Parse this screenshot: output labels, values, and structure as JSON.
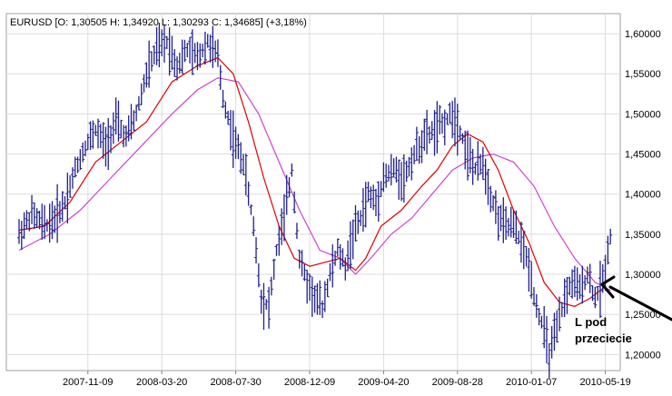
{
  "chart_data": {
    "type": "ohlc",
    "title": "EURUSD [O: 1,30505  H: 1,34920  L: 1,30293  C: 1,34685] (+3,18%)",
    "x_tick_labels": [
      "2007-11-09",
      "2008-03-20",
      "2008-07-30",
      "2008-12-09",
      "2009-04-20",
      "2009-08-28",
      "2010-01-07",
      "2010-05-19"
    ],
    "y_tick_labels": [
      "1,60000",
      "1,55000",
      "1,50000",
      "1,45000",
      "1,40000",
      "1,35000",
      "1,30000",
      "1,25000",
      "1,20000"
    ],
    "y_tick_values": [
      1.6,
      1.55,
      1.5,
      1.45,
      1.4,
      1.35,
      1.3,
      1.25,
      1.2
    ],
    "ylim": [
      1.18,
      1.625
    ],
    "grid": true,
    "price_color": "#20208c",
    "ma_fast_color": "#dd0000",
    "ma_slow_color": "#cc44cc",
    "price_path": [
      [
        0,
        1.35
      ],
      [
        5,
        1.375
      ],
      [
        10,
        1.36
      ],
      [
        14,
        1.37
      ],
      [
        18,
        1.39
      ],
      [
        22,
        1.43
      ],
      [
        26,
        1.46
      ],
      [
        30,
        1.48
      ],
      [
        34,
        1.46
      ],
      [
        38,
        1.49
      ],
      [
        42,
        1.47
      ],
      [
        46,
        1.5
      ],
      [
        50,
        1.55
      ],
      [
        54,
        1.58
      ],
      [
        58,
        1.59
      ],
      [
        62,
        1.56
      ],
      [
        66,
        1.58
      ],
      [
        70,
        1.57
      ],
      [
        74,
        1.59
      ],
      [
        78,
        1.57
      ],
      [
        80,
        1.52
      ],
      [
        84,
        1.47
      ],
      [
        88,
        1.44
      ],
      [
        92,
        1.36
      ],
      [
        95,
        1.27
      ],
      [
        98,
        1.26
      ],
      [
        101,
        1.33
      ],
      [
        104,
        1.37
      ],
      [
        107,
        1.43
      ],
      [
        110,
        1.32
      ],
      [
        113,
        1.29
      ],
      [
        116,
        1.27
      ],
      [
        119,
        1.26
      ],
      [
        122,
        1.3
      ],
      [
        125,
        1.33
      ],
      [
        128,
        1.31
      ],
      [
        131,
        1.35
      ],
      [
        134,
        1.37
      ],
      [
        137,
        1.4
      ],
      [
        140,
        1.39
      ],
      [
        143,
        1.42
      ],
      [
        147,
        1.43
      ],
      [
        151,
        1.42
      ],
      [
        155,
        1.45
      ],
      [
        159,
        1.47
      ],
      [
        163,
        1.48
      ],
      [
        167,
        1.49
      ],
      [
        170,
        1.5
      ],
      [
        173,
        1.48
      ],
      [
        176,
        1.45
      ],
      [
        179,
        1.43
      ],
      [
        182,
        1.44
      ],
      [
        185,
        1.4
      ],
      [
        188,
        1.37
      ],
      [
        191,
        1.36
      ],
      [
        194,
        1.36
      ],
      [
        197,
        1.34
      ],
      [
        200,
        1.31
      ],
      [
        203,
        1.26
      ],
      [
        206,
        1.23
      ],
      [
        208,
        1.2
      ],
      [
        211,
        1.23
      ],
      [
        214,
        1.27
      ],
      [
        217,
        1.29
      ],
      [
        220,
        1.28
      ],
      [
        223,
        1.3
      ],
      [
        226,
        1.27
      ],
      [
        229,
        1.29
      ],
      [
        232,
        1.35
      ]
    ],
    "ma_fast": [
      [
        0,
        1.355
      ],
      [
        10,
        1.36
      ],
      [
        20,
        1.39
      ],
      [
        30,
        1.44
      ],
      [
        40,
        1.465
      ],
      [
        50,
        1.49
      ],
      [
        60,
        1.54
      ],
      [
        70,
        1.56
      ],
      [
        78,
        1.57
      ],
      [
        84,
        1.55
      ],
      [
        90,
        1.49
      ],
      [
        96,
        1.42
      ],
      [
        102,
        1.36
      ],
      [
        108,
        1.32
      ],
      [
        114,
        1.31
      ],
      [
        120,
        1.315
      ],
      [
        126,
        1.32
      ],
      [
        132,
        1.305
      ],
      [
        136,
        1.32
      ],
      [
        142,
        1.36
      ],
      [
        150,
        1.38
      ],
      [
        158,
        1.41
      ],
      [
        164,
        1.43
      ],
      [
        170,
        1.46
      ],
      [
        176,
        1.475
      ],
      [
        182,
        1.465
      ],
      [
        188,
        1.43
      ],
      [
        194,
        1.38
      ],
      [
        200,
        1.34
      ],
      [
        206,
        1.29
      ],
      [
        212,
        1.265
      ],
      [
        218,
        1.26
      ],
      [
        224,
        1.27
      ],
      [
        230,
        1.285
      ]
    ],
    "ma_slow": [
      [
        0,
        1.33
      ],
      [
        12,
        1.35
      ],
      [
        24,
        1.38
      ],
      [
        36,
        1.42
      ],
      [
        48,
        1.46
      ],
      [
        60,
        1.5
      ],
      [
        70,
        1.53
      ],
      [
        78,
        1.545
      ],
      [
        86,
        1.54
      ],
      [
        94,
        1.5
      ],
      [
        102,
        1.44
      ],
      [
        110,
        1.38
      ],
      [
        118,
        1.33
      ],
      [
        126,
        1.32
      ],
      [
        132,
        1.3
      ],
      [
        138,
        1.32
      ],
      [
        146,
        1.35
      ],
      [
        154,
        1.37
      ],
      [
        162,
        1.4
      ],
      [
        170,
        1.43
      ],
      [
        178,
        1.445
      ],
      [
        186,
        1.45
      ],
      [
        194,
        1.44
      ],
      [
        202,
        1.41
      ],
      [
        210,
        1.36
      ],
      [
        218,
        1.32
      ],
      [
        226,
        1.29
      ],
      [
        232,
        1.28
      ]
    ]
  },
  "annotation": {
    "text_line1": "L pod",
    "text_line2": "przeciecie"
  }
}
